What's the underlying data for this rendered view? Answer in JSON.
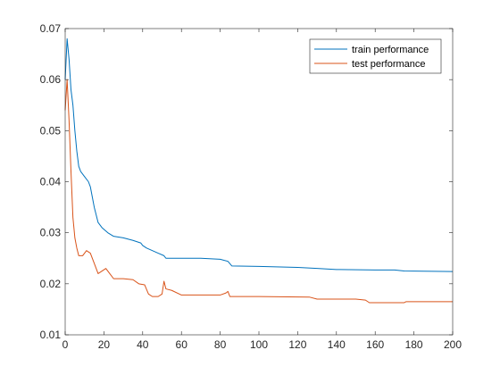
{
  "chart_data": {
    "type": "line",
    "title": "",
    "xlabel": "",
    "ylabel": "",
    "xlim": [
      0,
      200
    ],
    "ylim": [
      0.01,
      0.07
    ],
    "xticks": [
      0,
      20,
      40,
      60,
      80,
      100,
      120,
      140,
      160,
      180,
      200
    ],
    "yticks": [
      0.01,
      0.02,
      0.03,
      0.04,
      0.05,
      0.06,
      0.07
    ],
    "ytick_labels": [
      "0.01",
      "0.02",
      "0.03",
      "0.04",
      "0.05",
      "0.06",
      "0.07"
    ],
    "grid": false,
    "legend_position": "top-right",
    "series": [
      {
        "name": "train performance",
        "color": "#0072BD",
        "points": [
          [
            0,
            0.06
          ],
          [
            1,
            0.068
          ],
          [
            2,
            0.064
          ],
          [
            3,
            0.058
          ],
          [
            4,
            0.055
          ],
          [
            5,
            0.05
          ],
          [
            6,
            0.046
          ],
          [
            7,
            0.043
          ],
          [
            8,
            0.042
          ],
          [
            10,
            0.041
          ],
          [
            12,
            0.04
          ],
          [
            13,
            0.039
          ],
          [
            14,
            0.037
          ],
          [
            15,
            0.035
          ],
          [
            17,
            0.032
          ],
          [
            19,
            0.031
          ],
          [
            22,
            0.03
          ],
          [
            25,
            0.0293
          ],
          [
            30,
            0.029
          ],
          [
            35,
            0.0285
          ],
          [
            39,
            0.028
          ],
          [
            40,
            0.0275
          ],
          [
            42,
            0.027
          ],
          [
            45,
            0.0265
          ],
          [
            48,
            0.026
          ],
          [
            51,
            0.0255
          ],
          [
            52,
            0.025
          ],
          [
            60,
            0.025
          ],
          [
            70,
            0.025
          ],
          [
            80,
            0.0248
          ],
          [
            84,
            0.0244
          ],
          [
            86,
            0.0235
          ],
          [
            100,
            0.0234
          ],
          [
            120,
            0.0232
          ],
          [
            130,
            0.023
          ],
          [
            140,
            0.0228
          ],
          [
            160,
            0.0227
          ],
          [
            170,
            0.0227
          ],
          [
            175,
            0.0225
          ],
          [
            200,
            0.0224
          ]
        ]
      },
      {
        "name": "test performance",
        "color": "#D95319",
        "points": [
          [
            0,
            0.054
          ],
          [
            1,
            0.06
          ],
          [
            2,
            0.052
          ],
          [
            3,
            0.042
          ],
          [
            4,
            0.033
          ],
          [
            5,
            0.029
          ],
          [
            6,
            0.027
          ],
          [
            7,
            0.0255
          ],
          [
            9,
            0.0255
          ],
          [
            11,
            0.0265
          ],
          [
            13,
            0.026
          ],
          [
            15,
            0.024
          ],
          [
            17,
            0.022
          ],
          [
            19,
            0.0225
          ],
          [
            21,
            0.023
          ],
          [
            23,
            0.022
          ],
          [
            25,
            0.021
          ],
          [
            30,
            0.021
          ],
          [
            35,
            0.0208
          ],
          [
            38,
            0.02
          ],
          [
            41,
            0.0198
          ],
          [
            43,
            0.018
          ],
          [
            45,
            0.0175
          ],
          [
            48,
            0.0175
          ],
          [
            50,
            0.018
          ],
          [
            51,
            0.0205
          ],
          [
            52,
            0.019
          ],
          [
            55,
            0.0187
          ],
          [
            60,
            0.0178
          ],
          [
            70,
            0.0178
          ],
          [
            80,
            0.0178
          ],
          [
            83,
            0.0182
          ],
          [
            84,
            0.0185
          ],
          [
            85,
            0.0175
          ],
          [
            100,
            0.0175
          ],
          [
            126,
            0.0174
          ],
          [
            130,
            0.017
          ],
          [
            150,
            0.017
          ],
          [
            155,
            0.0168
          ],
          [
            157,
            0.0163
          ],
          [
            175,
            0.0163
          ],
          [
            176,
            0.0165
          ],
          [
            200,
            0.0165
          ]
        ]
      }
    ]
  }
}
